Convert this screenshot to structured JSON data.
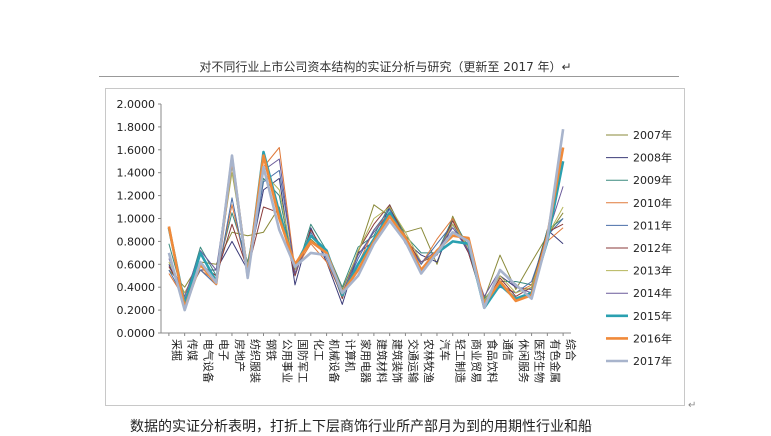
{
  "page": {
    "title": "对不同行业上市公司资本结构的实证分析与研究（更新至 2017 年）↵",
    "bottom_text": "数据的实证分析表明，打折上下层商饰行业所产部月为到的用期性行业和船",
    "corner_mark": "↵"
  },
  "chart_data": {
    "type": "line",
    "title": "",
    "xlabel": "",
    "ylabel": "",
    "ylim": [
      0,
      2.0
    ],
    "yticks": [
      "0.0000",
      "0.2000",
      "0.4000",
      "0.6000",
      "0.8000",
      "1.0000",
      "1.2000",
      "1.4000",
      "1.6000",
      "1.8000",
      "2.0000"
    ],
    "grid": false,
    "legend_position": "right",
    "categories": [
      "采掘",
      "传媒",
      "电气设备",
      "电子",
      "房地产",
      "纺织服装",
      "钢铁",
      "公用事业",
      "国防军工",
      "化工",
      "机械设备",
      "计算机",
      "家用电器",
      "建筑材料",
      "建筑装饰",
      "交通运输",
      "农林牧渔",
      "汽车",
      "轻工制造",
      "商业贸易",
      "食品饮料",
      "通信",
      "休闲服务",
      "医药生物",
      "有色金属",
      "综合"
    ],
    "series": [
      {
        "name": "2007年",
        "color": "#8a8a3a",
        "width": 1,
        "values": [
          0.55,
          0.4,
          0.62,
          0.6,
          0.88,
          0.85,
          0.88,
          1.1,
          0.55,
          0.82,
          0.7,
          0.38,
          0.7,
          1.12,
          1.02,
          0.88,
          0.92,
          0.6,
          1.02,
          0.72,
          0.3,
          0.68,
          0.38,
          0.62,
          0.85,
          1.05
        ]
      },
      {
        "name": "2008年",
        "color": "#3b3b78",
        "width": 1,
        "values": [
          0.6,
          0.3,
          0.55,
          0.55,
          0.8,
          0.55,
          1.25,
          1.35,
          0.42,
          0.92,
          0.62,
          0.25,
          0.7,
          0.8,
          1.1,
          0.8,
          0.68,
          0.62,
          0.95,
          0.7,
          0.28,
          0.5,
          0.4,
          0.38,
          0.9,
          0.78
        ]
      },
      {
        "name": "2009年",
        "color": "#3a8a7e",
        "width": 1,
        "values": [
          0.78,
          0.28,
          0.75,
          0.5,
          1.05,
          0.62,
          1.35,
          1.2,
          0.5,
          0.95,
          0.72,
          0.4,
          0.75,
          0.85,
          1.12,
          0.85,
          0.7,
          0.7,
          1.0,
          0.75,
          0.3,
          0.45,
          0.45,
          0.42,
          0.9,
          1.0
        ]
      },
      {
        "name": "2010年",
        "color": "#e07a3a",
        "width": 1,
        "values": [
          0.52,
          0.3,
          0.55,
          0.45,
          1.12,
          0.52,
          1.45,
          1.62,
          0.55,
          0.78,
          0.62,
          0.33,
          0.6,
          0.9,
          1.05,
          0.85,
          0.6,
          0.82,
          1.0,
          0.72,
          0.25,
          0.42,
          0.35,
          0.42,
          0.8,
          0.92
        ]
      },
      {
        "name": "2011年",
        "color": "#4a6ea8",
        "width": 1,
        "values": [
          0.55,
          0.3,
          0.55,
          0.42,
          1.18,
          0.5,
          1.32,
          1.42,
          0.55,
          0.88,
          0.65,
          0.32,
          0.65,
          0.9,
          1.08,
          0.8,
          0.6,
          0.78,
          0.95,
          0.72,
          0.28,
          0.4,
          0.35,
          0.45,
          0.85,
          1.0
        ]
      },
      {
        "name": "2012年",
        "color": "#8a3a3a",
        "width": 1,
        "values": [
          0.58,
          0.35,
          0.6,
          0.5,
          0.95,
          0.55,
          1.1,
          1.05,
          0.5,
          0.9,
          0.68,
          0.3,
          0.72,
          0.95,
          1.12,
          0.82,
          0.62,
          0.68,
          0.98,
          0.7,
          0.25,
          0.48,
          0.32,
          0.4,
          0.88,
          0.95
        ]
      },
      {
        "name": "2013年",
        "color": "#b5b55a",
        "width": 1,
        "values": [
          0.62,
          0.35,
          0.58,
          0.48,
          1.4,
          0.58,
          1.4,
          1.25,
          0.55,
          0.85,
          0.7,
          0.32,
          0.72,
          1.0,
          1.1,
          0.88,
          0.62,
          0.7,
          0.95,
          0.75,
          0.28,
          0.5,
          0.35,
          0.4,
          0.85,
          1.1
        ]
      },
      {
        "name": "2014年",
        "color": "#6a5a9a",
        "width": 1,
        "values": [
          0.65,
          0.32,
          0.72,
          0.55,
          1.5,
          0.55,
          1.42,
          1.52,
          0.52,
          0.85,
          0.72,
          0.35,
          0.68,
          0.88,
          1.05,
          0.78,
          0.62,
          0.72,
          0.92,
          0.72,
          0.32,
          0.55,
          0.4,
          0.35,
          0.85,
          1.28
        ]
      },
      {
        "name": "2015年",
        "color": "#2aa0b0",
        "width": 2.6,
        "values": [
          0.92,
          0.25,
          0.7,
          0.45,
          1.52,
          0.5,
          1.58,
          1.05,
          0.58,
          0.85,
          0.72,
          0.33,
          0.6,
          0.82,
          1.05,
          0.82,
          0.55,
          0.7,
          0.8,
          0.78,
          0.22,
          0.42,
          0.3,
          0.35,
          0.8,
          1.5
        ]
      },
      {
        "name": "2016年",
        "color": "#f08a3a",
        "width": 2.6,
        "values": [
          0.93,
          0.22,
          0.6,
          0.43,
          1.53,
          0.5,
          1.55,
          1.0,
          0.6,
          0.8,
          0.7,
          0.35,
          0.55,
          0.8,
          1.02,
          0.83,
          0.55,
          0.72,
          0.85,
          0.83,
          0.25,
          0.45,
          0.28,
          0.33,
          0.85,
          1.62
        ]
      },
      {
        "name": "2017年",
        "color": "#a8b4cc",
        "width": 2.6,
        "values": [
          0.7,
          0.2,
          0.62,
          0.44,
          1.55,
          0.48,
          1.45,
          0.9,
          0.58,
          0.7,
          0.68,
          0.35,
          0.5,
          0.78,
          0.98,
          0.8,
          0.52,
          0.7,
          0.88,
          0.8,
          0.22,
          0.55,
          0.42,
          0.3,
          0.82,
          1.78
        ]
      }
    ]
  }
}
